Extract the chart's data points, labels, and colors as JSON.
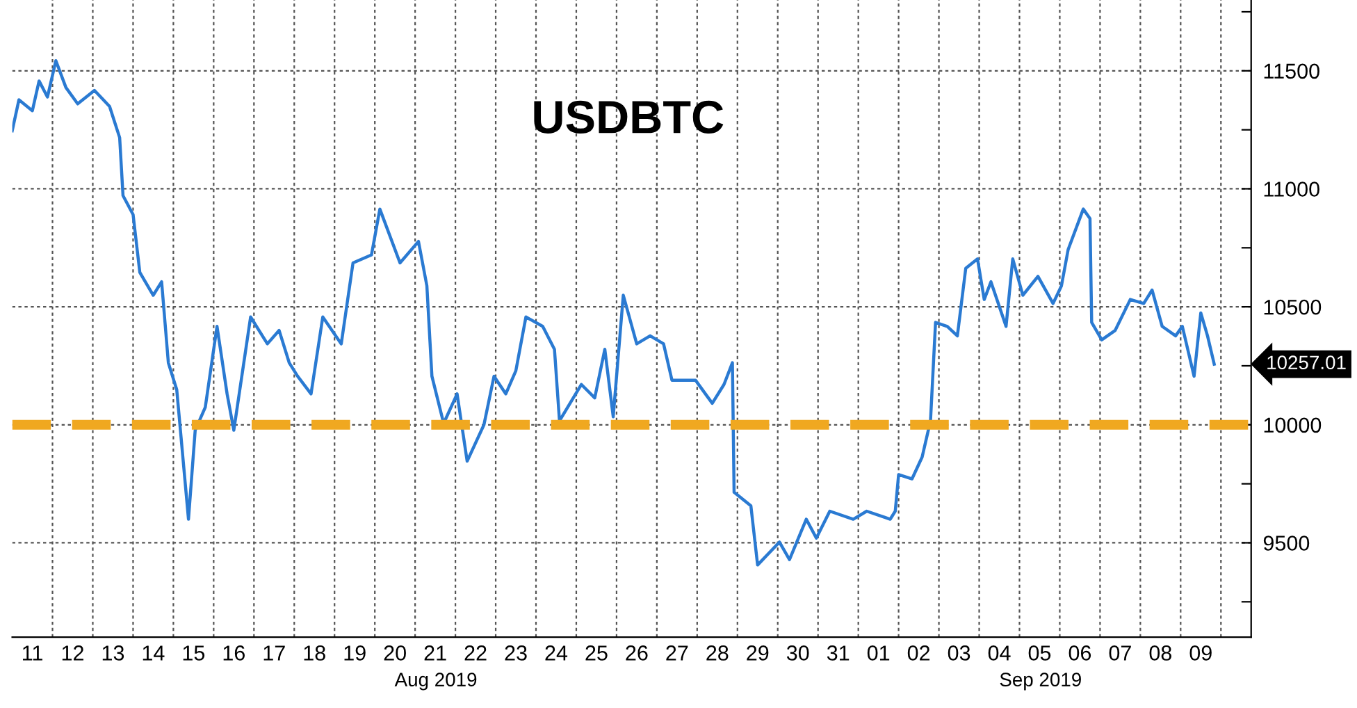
{
  "chart_data": {
    "type": "line",
    "title": "USDBTC",
    "x": [
      "2019-08-11T00:00",
      "2019-08-11T04:00",
      "2019-08-11T12:00",
      "2019-08-11T16:00",
      "2019-08-11T21:00",
      "2019-08-12T02:00",
      "2019-08-12T08:00",
      "2019-08-12T15:00",
      "2019-08-13T01:00",
      "2019-08-13T10:00",
      "2019-08-13T16:00",
      "2019-08-13T18:00",
      "2019-08-14T00:00",
      "2019-08-14T04:00",
      "2019-08-14T12:00",
      "2019-08-14T17:00",
      "2019-08-14T21:00",
      "2019-08-15T02:00",
      "2019-08-15T09:00",
      "2019-08-15T13:00",
      "2019-08-15T19:00",
      "2019-08-16T02:00",
      "2019-08-16T08:00",
      "2019-08-16T12:00",
      "2019-08-16T22:00",
      "2019-08-17T08:00",
      "2019-08-17T15:00",
      "2019-08-17T21:00",
      "2019-08-18T02:00",
      "2019-08-18T10:00",
      "2019-08-18T17:00",
      "2019-08-19T04:00",
      "2019-08-19T11:00",
      "2019-08-19T22:00",
      "2019-08-20T03:00",
      "2019-08-20T15:00",
      "2019-08-21T02:00",
      "2019-08-21T07:00",
      "2019-08-21T10:00",
      "2019-08-21T17:00",
      "2019-08-22T01:00",
      "2019-08-22T07:00",
      "2019-08-22T17:00",
      "2019-08-22T23:00",
      "2019-08-23T06:00",
      "2019-08-23T12:00",
      "2019-08-23T18:00",
      "2019-08-24T04:00",
      "2019-08-24T11:00",
      "2019-08-24T14:00",
      "2019-08-25T03:00",
      "2019-08-25T11:00",
      "2019-08-25T17:00",
      "2019-08-25T22:00",
      "2019-08-26T04:00",
      "2019-08-26T12:00",
      "2019-08-26T20:00",
      "2019-08-27T04:00",
      "2019-08-27T09:00",
      "2019-08-27T23:00",
      "2019-08-28T09:00",
      "2019-08-28T16:00",
      "2019-08-28T21:00",
      "2019-08-28T22:00",
      "2019-08-29T08:00",
      "2019-08-29T12:00",
      "2019-08-30T01:00",
      "2019-08-30T07:00",
      "2019-08-30T17:00",
      "2019-08-30T23:00",
      "2019-08-31T07:00",
      "2019-08-31T21:00",
      "2019-09-01T05:00",
      "2019-09-01T19:00",
      "2019-09-01T22:00",
      "2019-09-02T00:00",
      "2019-09-02T08:00",
      "2019-09-02T14:00",
      "2019-09-02T19:00",
      "2019-09-02T22:00",
      "2019-09-03T05:00",
      "2019-09-03T11:00",
      "2019-09-03T16:00",
      "2019-09-03T23:00",
      "2019-09-04T03:00",
      "2019-09-04T07:00",
      "2019-09-04T16:00",
      "2019-09-04T20:00",
      "2019-09-05T02:00",
      "2019-09-05T11:00",
      "2019-09-05T20:00",
      "2019-09-06T01:00",
      "2019-09-06T05:00",
      "2019-09-06T14:00",
      "2019-09-06T18:00",
      "2019-09-06T19:00",
      "2019-09-07T01:00",
      "2019-09-07T09:00",
      "2019-09-07T18:00",
      "2019-09-08T02:00",
      "2019-09-08T07:00",
      "2019-09-08T13:00",
      "2019-09-08T21:00",
      "2019-09-09T01:00",
      "2019-09-09T08:00",
      "2019-09-09T12:00",
      "2019-09-09T16:00",
      "2019-09-09T20:00"
    ],
    "series": [
      {
        "color": "#2a7ad2",
        "values": [
          11246,
          11377,
          11331,
          11457,
          11389,
          11543,
          11429,
          11360,
          11417,
          11349,
          11217,
          10971,
          10891,
          10646,
          10549,
          10606,
          10263,
          10149,
          9600,
          9977,
          10074,
          10417,
          10131,
          9977,
          10457,
          10343,
          10400,
          10263,
          10206,
          10131,
          10457,
          10343,
          10686,
          10720,
          10914,
          10686,
          10777,
          10589,
          10206,
          10006,
          10131,
          9846,
          10000,
          10206,
          10131,
          10229,
          10457,
          10417,
          10320,
          10017,
          10171,
          10114,
          10320,
          10034,
          10549,
          10343,
          10377,
          10343,
          10189,
          10189,
          10091,
          10171,
          10263,
          9714,
          9657,
          9406,
          9503,
          9429,
          9600,
          9520,
          9634,
          9600,
          9634,
          9600,
          9634,
          9789,
          9771,
          9863,
          10017,
          10434,
          10417,
          10377,
          10663,
          10703,
          10531,
          10606,
          10417,
          10703,
          10549,
          10629,
          10514,
          10589,
          10743,
          10914,
          10874,
          10434,
          10360,
          10400,
          10531,
          10514,
          10571,
          10417,
          10377,
          10417,
          10206,
          10474,
          10377,
          10257
        ]
      }
    ],
    "xlim": [
      "2019-08-11T00:00",
      "2019-09-10T18:00"
    ],
    "xticks": [
      {
        "value": "2019-08-11T12:00",
        "label": "11"
      },
      {
        "value": "2019-08-12T00:00",
        "label": null
      },
      {
        "value": "2019-08-12T12:00",
        "label": "12"
      },
      {
        "value": "2019-08-13T00:00",
        "label": null
      },
      {
        "value": "2019-08-13T12:00",
        "label": "13"
      },
      {
        "value": "2019-08-14T00:00",
        "label": null
      },
      {
        "value": "2019-08-14T12:00",
        "label": "14"
      },
      {
        "value": "2019-08-15T00:00",
        "label": null
      },
      {
        "value": "2019-08-15T12:00",
        "label": "15"
      },
      {
        "value": "2019-08-16T00:00",
        "label": null
      },
      {
        "value": "2019-08-16T12:00",
        "label": "16"
      },
      {
        "value": "2019-08-17T00:00",
        "label": null
      },
      {
        "value": "2019-08-17T12:00",
        "label": "17"
      },
      {
        "value": "2019-08-18T00:00",
        "label": null
      },
      {
        "value": "2019-08-18T12:00",
        "label": "18"
      },
      {
        "value": "2019-08-19T00:00",
        "label": null
      },
      {
        "value": "2019-08-19T12:00",
        "label": "19"
      },
      {
        "value": "2019-08-20T00:00",
        "label": null
      },
      {
        "value": "2019-08-20T12:00",
        "label": "20"
      },
      {
        "value": "2019-08-21T00:00",
        "label": null
      },
      {
        "value": "2019-08-21T12:00",
        "label": "21"
      },
      {
        "value": "2019-08-22T00:00",
        "label": null
      },
      {
        "value": "2019-08-22T12:00",
        "label": "22"
      },
      {
        "value": "2019-08-23T00:00",
        "label": null
      },
      {
        "value": "2019-08-23T12:00",
        "label": "23"
      },
      {
        "value": "2019-08-24T00:00",
        "label": null
      },
      {
        "value": "2019-08-24T12:00",
        "label": "24"
      },
      {
        "value": "2019-08-25T00:00",
        "label": null
      },
      {
        "value": "2019-08-25T12:00",
        "label": "25"
      },
      {
        "value": "2019-08-26T00:00",
        "label": null
      },
      {
        "value": "2019-08-26T12:00",
        "label": "26"
      },
      {
        "value": "2019-08-27T00:00",
        "label": null
      },
      {
        "value": "2019-08-27T12:00",
        "label": "27"
      },
      {
        "value": "2019-08-28T00:00",
        "label": null
      },
      {
        "value": "2019-08-28T12:00",
        "label": "28"
      },
      {
        "value": "2019-08-29T00:00",
        "label": null
      },
      {
        "value": "2019-08-29T12:00",
        "label": "29"
      },
      {
        "value": "2019-08-30T00:00",
        "label": null
      },
      {
        "value": "2019-08-30T12:00",
        "label": "30"
      },
      {
        "value": "2019-08-31T00:00",
        "label": null
      },
      {
        "value": "2019-08-31T12:00",
        "label": "31"
      },
      {
        "value": "2019-09-01T00:00",
        "label": null
      },
      {
        "value": "2019-09-01T12:00",
        "label": "01"
      },
      {
        "value": "2019-09-02T00:00",
        "label": null
      },
      {
        "value": "2019-09-02T12:00",
        "label": "02"
      },
      {
        "value": "2019-09-03T00:00",
        "label": null
      },
      {
        "value": "2019-09-03T12:00",
        "label": "03"
      },
      {
        "value": "2019-09-04T00:00",
        "label": null
      },
      {
        "value": "2019-09-04T12:00",
        "label": "04"
      },
      {
        "value": "2019-09-05T00:00",
        "label": null
      },
      {
        "value": "2019-09-05T12:00",
        "label": "05"
      },
      {
        "value": "2019-09-06T00:00",
        "label": null
      },
      {
        "value": "2019-09-06T12:00",
        "label": "06"
      },
      {
        "value": "2019-09-07T00:00",
        "label": null
      },
      {
        "value": "2019-09-07T12:00",
        "label": "07"
      },
      {
        "value": "2019-09-08T00:00",
        "label": null
      },
      {
        "value": "2019-09-08T12:00",
        "label": "08"
      },
      {
        "value": "2019-09-09T00:00",
        "label": null
      },
      {
        "value": "2019-09-09T12:00",
        "label": "09"
      },
      {
        "value": "2019-09-10T00:00",
        "label": null
      }
    ],
    "ylim": [
      9100,
      11800
    ],
    "yticks": [
      {
        "value": 9250,
        "label": null
      },
      9500,
      {
        "value": 9750,
        "label": null
      },
      10000,
      {
        "value": 10250,
        "label": null
      },
      10500,
      {
        "value": 10750,
        "label": null
      },
      11000,
      {
        "value": 11250,
        "label": null
      },
      11500,
      {
        "value": 11750,
        "label": null
      }
    ],
    "grid": true,
    "ref_lines": [
      {
        "axis": "y",
        "value": 10000,
        "color": "#f0a820",
        "line_style": "dashed"
      }
    ],
    "annotations": [
      {
        "text": "10257.01",
        "x": "2019-09-09T20:00",
        "y": 10257.01
      },
      "Aug 2019",
      "Sep 2019"
    ]
  }
}
